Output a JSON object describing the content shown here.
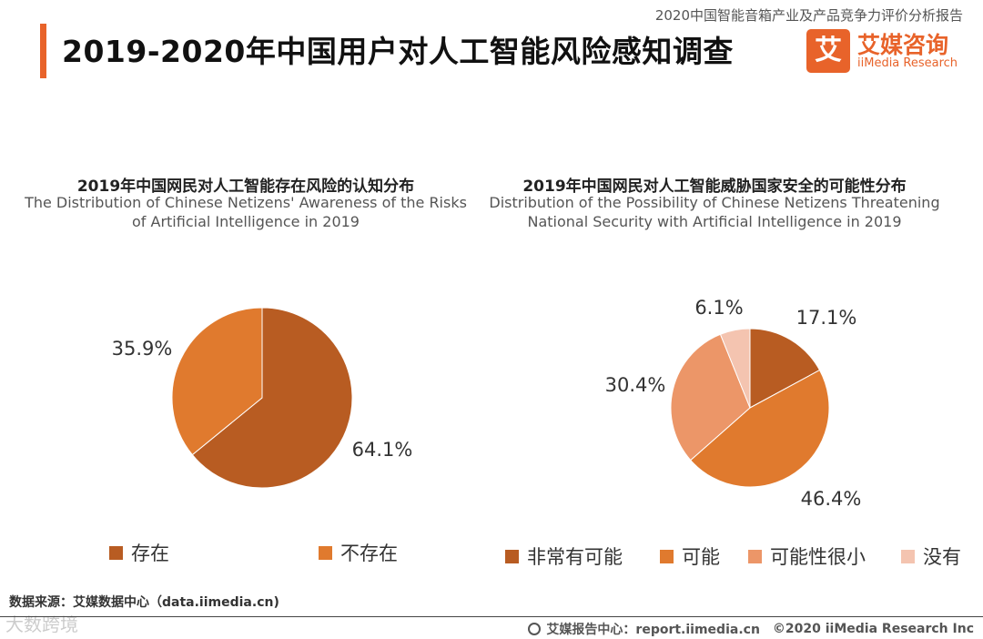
{
  "header": {
    "report_name": "2020中国智能音箱产业及产品竞争力评价分析报告",
    "title": "2019-2020年中国用户对人工智能风险感知调查",
    "logo_mark": "艾",
    "logo_cn": "艾媒咨询",
    "logo_en": "iiMedia Research"
  },
  "colors": {
    "accent": "#e8632a",
    "dark_orange": "#b85c22",
    "orange": "#e07a2e",
    "light_orange": "#ec9668",
    "pale_pink": "#f4c4b0"
  },
  "chart_data": [
    {
      "type": "pie",
      "title": "2019年中国网民对人工智能存在风险的认知分布",
      "subtitle": "The Distribution of Chinese Netizens' Awareness of the Risks of Artificial Intelligence in 2019",
      "categories": [
        "存在",
        "不存在"
      ],
      "values": [
        64.1,
        35.9
      ],
      "labels": [
        "64.1%",
        "35.9%"
      ],
      "colors": [
        "#b85c22",
        "#e07a2e"
      ],
      "legend_position": "bottom"
    },
    {
      "type": "pie",
      "title": "2019年中国网民对人工智能威胁国家安全的可能性分布",
      "subtitle": "Distribution of the Possibility of Chinese Netizens Threatening National Security with Artificial Intelligence in 2019",
      "categories": [
        "非常有可能",
        "可能",
        "可能性很小",
        "没有"
      ],
      "values": [
        17.1,
        46.4,
        30.4,
        6.1
      ],
      "labels": [
        "17.1%",
        "46.4%",
        "30.4%",
        "6.1%"
      ],
      "colors": [
        "#b85c22",
        "#e07a2e",
        "#ec9668",
        "#f4c4b0"
      ],
      "legend_position": "bottom"
    }
  ],
  "footer": {
    "source": "数据来源：艾媒数据中心（data.iimedia.cn)",
    "watermark": "大数跨境",
    "site": "艾媒报告中心：report.iimedia.cn",
    "copyright": "©2020  iiMedia Research  Inc"
  }
}
